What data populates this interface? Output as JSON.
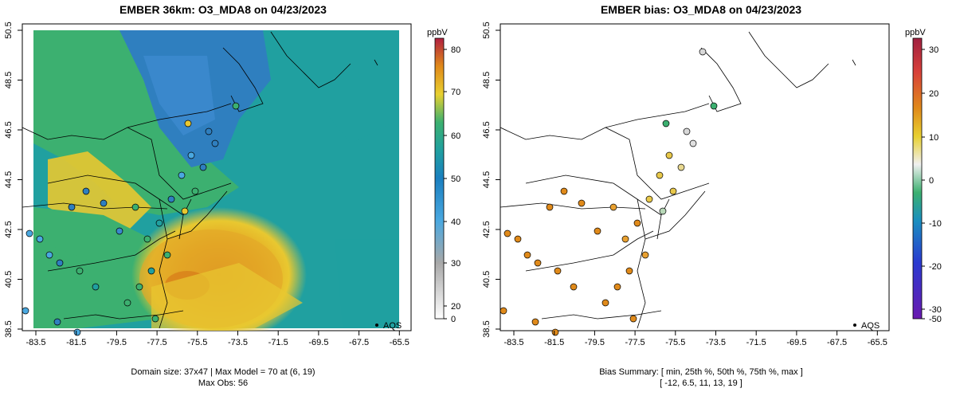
{
  "left_panel": {
    "title": "EMBER 36km: O3_MDA8 on 04/23/2023",
    "caption_line1": "Domain size: 37x47 | Max Model = 70 at (6, 19)",
    "caption_line2": "Max Obs: 56",
    "colorbar_unit": "ppbV",
    "colorbar_ticks": [
      "80",
      "70",
      "60",
      "50",
      "40",
      "30",
      "20",
      "0"
    ],
    "legend_label": "AQS"
  },
  "right_panel": {
    "title": "EMBER bias: O3_MDA8 on 04/23/2023",
    "caption_line1": "Bias Summary: [ min, 25th %, 50th %, 75th %, max ]",
    "caption_line2": "[ -12,  6.5,  11,  13,  19 ]",
    "colorbar_unit": "ppbV",
    "colorbar_ticks": [
      "30",
      "20",
      "10",
      "0",
      "-10",
      "-20",
      "-30",
      "-50"
    ],
    "legend_label": "AQS"
  },
  "axes": {
    "x_ticks": [
      "-83.5",
      "-81.5",
      "-79.5",
      "-77.5",
      "-75.5",
      "-73.5",
      "-71.5",
      "-69.5",
      "-67.5",
      "-65.5"
    ],
    "y_ticks": [
      "50.5",
      "48.5",
      "46.5",
      "44.5",
      "42.5",
      "40.5",
      "38.5"
    ]
  },
  "colors": {
    "model_blue": "#2f7fbf",
    "model_teal": "#20a0a0",
    "model_green": "#3cb070",
    "model_yellow": "#e8c830",
    "model_orange": "#e09020",
    "bias_orange": "#e08a1a",
    "bias_yellow": "#e8c84a",
    "bias_gray": "#d8d8d8"
  }
}
